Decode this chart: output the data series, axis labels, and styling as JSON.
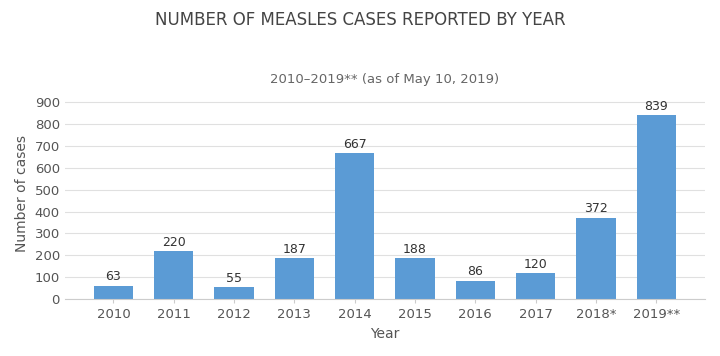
{
  "title": "NUMBER OF MEASLES CASES REPORTED BY YEAR",
  "subtitle": "2010–2019** (as of May 10, 2019)",
  "xlabel": "Year",
  "ylabel": "Number of cases",
  "categories": [
    "2010",
    "2011",
    "2012",
    "2013",
    "2014",
    "2015",
    "2016",
    "2017",
    "2018*",
    "2019**"
  ],
  "values": [
    63,
    220,
    55,
    187,
    667,
    188,
    86,
    120,
    372,
    839
  ],
  "bar_color": "#5B9BD5",
  "background_color": "#FFFFFF",
  "ylim": [
    0,
    960
  ],
  "yticks": [
    0,
    100,
    200,
    300,
    400,
    500,
    600,
    700,
    800,
    900
  ],
  "title_fontsize": 12,
  "subtitle_fontsize": 9.5,
  "label_fontsize": 10,
  "tick_fontsize": 9.5,
  "value_label_fontsize": 9
}
